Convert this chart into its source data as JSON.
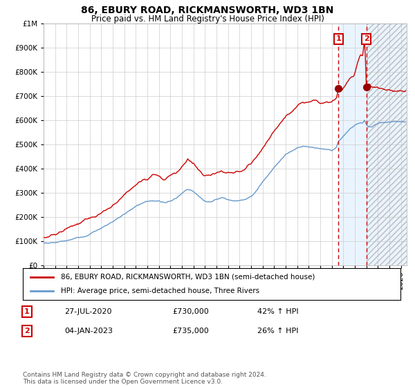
{
  "title": "86, EBURY ROAD, RICKMANSWORTH, WD3 1BN",
  "subtitle": "Price paid vs. HM Land Registry's House Price Index (HPI)",
  "legend_label_red": "86, EBURY ROAD, RICKMANSWORTH, WD3 1BN (semi-detached house)",
  "legend_label_blue": "HPI: Average price, semi-detached house, Three Rivers",
  "transaction1_date": "27-JUL-2020",
  "transaction1_price": 730000,
  "transaction1_hpi_text": "42% ↑ HPI",
  "transaction1_x": 2020.57,
  "transaction2_date": "04-JAN-2023",
  "transaction2_price": 735000,
  "transaction2_hpi_text": "26% ↑ HPI",
  "transaction2_x": 2023.01,
  "footer": "Contains HM Land Registry data © Crown copyright and database right 2024.\nThis data is licensed under the Open Government Licence v3.0.",
  "ylim": [
    0,
    1000000
  ],
  "xlim_start": 1995.0,
  "xlim_end": 2026.5,
  "bg_color": "#ffffff",
  "grid_color": "#cccccc",
  "red_color": "#cc0000",
  "blue_color": "#6699cc",
  "light_blue_fill": "#ddeeff",
  "hatch_color": "#bbbbbb"
}
